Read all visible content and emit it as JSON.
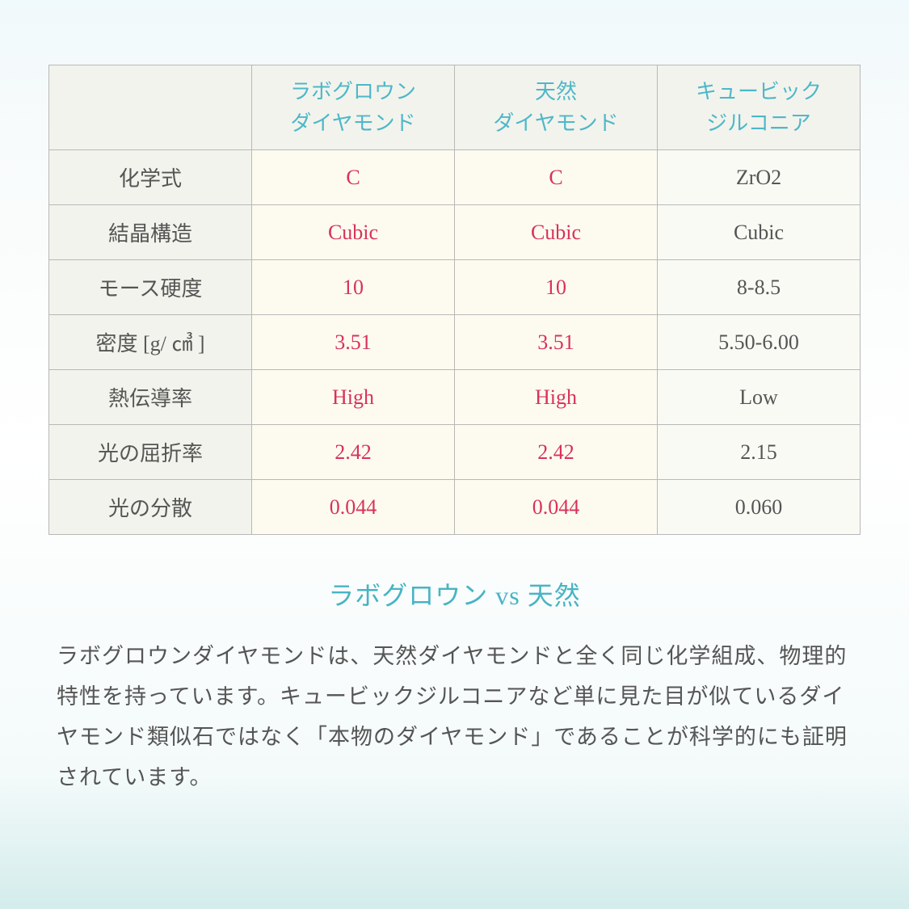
{
  "table": {
    "headers": {
      "col1": "",
      "col2_line1": "ラボグロウン",
      "col2_line2": "ダイヤモンド",
      "col3_line1": "天然",
      "col3_line2": "ダイヤモンド",
      "col4_line1": "キュービック",
      "col4_line2": "ジルコニア"
    },
    "rows": [
      {
        "label": "化学式",
        "col2": "C",
        "col3": "C",
        "col4": "ZrO2"
      },
      {
        "label": "結晶構造",
        "col2": "Cubic",
        "col3": "Cubic",
        "col4": "Cubic"
      },
      {
        "label": "モース硬度",
        "col2": "10",
        "col3": "10",
        "col4": "8-8.5"
      },
      {
        "label": "密度 [g/ ㎤ ]",
        "col2": "3.51",
        "col3": "3.51",
        "col4": "5.50-6.00"
      },
      {
        "label": "熱伝導率",
        "col2": "High",
        "col3": "High",
        "col4": "Low"
      },
      {
        "label": "光の屈折率",
        "col2": "2.42",
        "col3": "2.42",
        "col4": "2.15"
      },
      {
        "label": "光の分散",
        "col2": "0.044",
        "col3": "0.044",
        "col4": "0.060"
      }
    ]
  },
  "section": {
    "title": "ラボグロウン vs 天然",
    "body": "ラボグロウンダイヤモンドは、天然ダイヤモンドと全く同じ化学組成、物理的特性を持っています。キュービックジルコニアなど単に見た目が似ているダイヤモンド類似石ではなく「本物のダイヤモンド」であることが科学的にも証明されています。"
  },
  "styling": {
    "type": "table",
    "colors": {
      "header_text": "#4db8c8",
      "highlight_text": "#d9325a",
      "normal_text": "#555555",
      "header_bg": "#f3f3ed",
      "highlight_bg": "#fdfbf0",
      "normal_bg": "#fafaf5",
      "border": "#b8b8b8",
      "title_text": "#47b4c4",
      "body_text": "#555555",
      "page_bg_top": "#f0f9fb",
      "page_bg_bottom": "#d4ecec"
    },
    "fonts": {
      "header_fontsize": 26,
      "cell_fontsize": 26,
      "label_fontsize": 24,
      "title_fontsize": 32,
      "body_fontsize": 27,
      "family": "serif"
    },
    "layout": {
      "header_row_height": 105,
      "data_row_height": 68,
      "col_widths_pct": [
        25,
        25,
        25,
        25
      ]
    }
  }
}
